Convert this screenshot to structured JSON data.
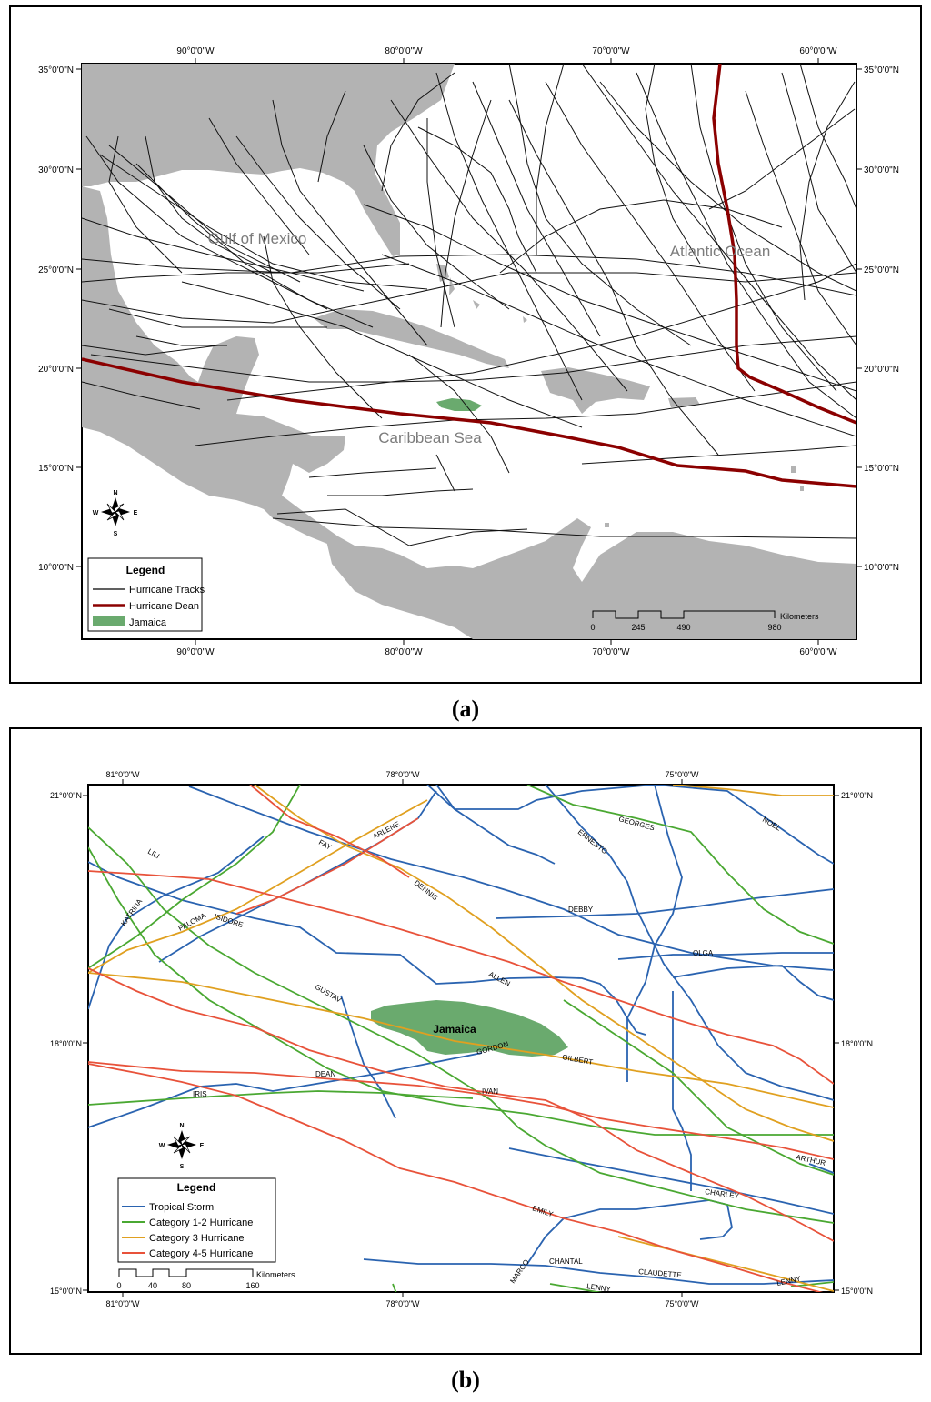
{
  "figure_a": {
    "caption": "(a)",
    "lon_labels": [
      "90°0'0\"W",
      "80°0'0\"W",
      "70°0'0\"W",
      "60°0'0\"W"
    ],
    "lat_labels": [
      "35°0'0\"N",
      "30°0'0\"N",
      "25°0'0\"N",
      "20°0'0\"N",
      "15°0'0\"N",
      "10°0'0\"N"
    ],
    "regions": {
      "gulf": "Gulf of Mexico",
      "atlantic": "Atlantic Ocean",
      "caribbean": "Caribbean Sea"
    },
    "legend": {
      "title": "Legend",
      "items": [
        {
          "label": "Hurricane Tracks",
          "color": "#000000"
        },
        {
          "label": "Hurricane Dean",
          "color": "#8b0000"
        },
        {
          "label": "Jamaica",
          "color": "#6aaa6e"
        }
      ]
    },
    "scale": {
      "unit": "Kilometers",
      "ticks": [
        "0",
        "245",
        "490",
        "980"
      ]
    },
    "compass": {
      "n": "N",
      "s": "S",
      "e": "E",
      "w": "W"
    }
  },
  "figure_b": {
    "caption": "(b)",
    "lon_labels": [
      "81°0'0\"W",
      "78°0'0\"W",
      "75°0'0\"W"
    ],
    "lat_labels": [
      "21°0'0\"N",
      "18°0'0\"N",
      "15°0'0\"N"
    ],
    "island": "Jamaica",
    "storm_names": {
      "arlene": "ARLENE",
      "fay": "FAY",
      "dennis": "DENNIS",
      "ernesto": "ERNESTO",
      "georges": "GEORGES",
      "noel": "NOEL",
      "lili": "LILI",
      "katrina": "KATRINA",
      "paloma": "PALOMA",
      "isidore": "ISIDORE",
      "debby": "DEBBY",
      "olga": "OLGA",
      "allen": "ALLEN",
      "gustav": "GUSTAV",
      "gordon": "GORDON",
      "gilbert": "GILBERT",
      "dean": "DEAN",
      "ivan": "IVAN",
      "iris": "IRIS",
      "arthur": "ARTHUR",
      "charley": "CHARLEY",
      "emily": "EMILY",
      "marco": "MARCO",
      "chantal": "CHANTAL",
      "claudette": "CLAUDETTE",
      "lenny": "LENNY",
      "lenny2": "LENNY"
    },
    "legend": {
      "title": "Legend",
      "items": [
        {
          "label": "Tropical Storm",
          "color": "#2a63b0"
        },
        {
          "label": "Category 1-2 Hurricane",
          "color": "#4aa832"
        },
        {
          "label": "Category 3 Hurricane",
          "color": "#e0a020"
        },
        {
          "label": "Category 4-5 Hurricane",
          "color": "#e8523a"
        }
      ]
    },
    "scale": {
      "unit": "Kilometers",
      "ticks": [
        "0",
        "40",
        "80",
        "160"
      ]
    },
    "compass": {
      "n": "N",
      "s": "S",
      "e": "E",
      "w": "W"
    }
  }
}
